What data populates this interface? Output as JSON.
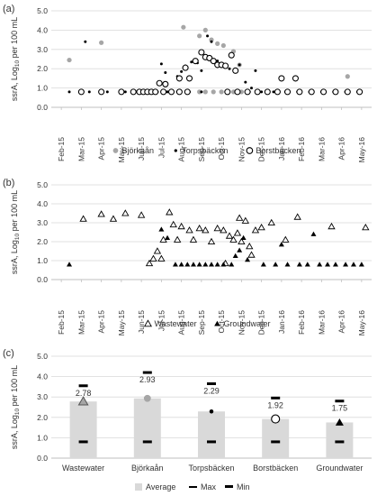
{
  "chart_data": [
    {
      "panel_label": "(a)",
      "type": "scatter",
      "ylabel_parts": [
        "ssrA, Log",
        "10",
        " per 100 mL"
      ],
      "ylim": [
        0,
        5
      ],
      "yticks": [
        "0.0",
        "1.0",
        "2.0",
        "3.0",
        "4.0",
        "5.0"
      ],
      "x_tick_labels": [
        "Feb-15",
        "Mar-15",
        "Apr-15",
        "May-15",
        "Jun-15",
        "Jul-15",
        "Aug-15",
        "Sep-15",
        "Oct-15",
        "Nov-15",
        "Dec-15",
        "Jan-16",
        "Feb-16",
        "Mar-16",
        "Apr-16",
        "May-16"
      ],
      "grid": true,
      "legend_position": "bottom",
      "series": [
        {
          "name": "Björkaån",
          "marker": "circle-gray",
          "points": [
            [
              0.4,
              2.45
            ],
            [
              2.0,
              3.35
            ],
            [
              6.1,
              4.15
            ],
            [
              6.9,
              3.7
            ],
            [
              7.2,
              4.0
            ],
            [
              7.5,
              3.5
            ],
            [
              7.8,
              3.3
            ],
            [
              8.1,
              3.2
            ],
            [
              8.6,
              2.9
            ],
            [
              8.9,
              2.2
            ],
            [
              2.0,
              0.8
            ],
            [
              6.9,
              0.8
            ],
            [
              7.2,
              0.8
            ],
            [
              7.6,
              0.8
            ],
            [
              8.0,
              0.8
            ],
            [
              8.3,
              0.8
            ],
            [
              8.6,
              0.8
            ],
            [
              9.0,
              0.8
            ],
            [
              14.3,
              1.6
            ]
          ]
        },
        {
          "name": "Torpsbäcken",
          "marker": "dot-black",
          "points": [
            [
              1.2,
              3.4
            ],
            [
              5.0,
              2.25
            ],
            [
              5.2,
              1.8
            ],
            [
              5.8,
              1.6
            ],
            [
              6.0,
              1.85
            ],
            [
              6.2,
              2.15
            ],
            [
              6.5,
              2.35
            ],
            [
              6.8,
              2.3
            ],
            [
              7.0,
              1.9
            ],
            [
              7.3,
              3.7
            ],
            [
              7.5,
              3.4
            ],
            [
              7.8,
              2.4
            ],
            [
              8.1,
              2.2
            ],
            [
              8.4,
              2.0
            ],
            [
              8.9,
              2.2
            ],
            [
              9.2,
              1.3
            ],
            [
              9.5,
              1.0
            ],
            [
              9.7,
              1.9
            ],
            [
              0.4,
              0.8
            ],
            [
              1.4,
              0.8
            ],
            [
              2.3,
              0.8
            ],
            [
              3.2,
              0.8
            ],
            [
              3.9,
              0.8
            ],
            [
              4.2,
              0.8
            ],
            [
              4.5,
              0.8
            ],
            [
              4.8,
              0.8
            ],
            [
              5.3,
              0.8
            ],
            [
              5.8,
              0.8
            ],
            [
              6.4,
              0.8
            ],
            [
              7.0,
              0.8
            ],
            [
              9.4,
              0.8
            ],
            [
              10.0,
              0.8
            ],
            [
              10.6,
              0.8
            ],
            [
              11.2,
              0.8
            ],
            [
              11.8,
              0.8
            ],
            [
              12.4,
              0.8
            ],
            [
              13.0,
              0.8
            ],
            [
              13.6,
              0.8
            ],
            [
              14.2,
              0.8
            ],
            [
              14.8,
              0.8
            ]
          ]
        },
        {
          "name": "Borstbäcken",
          "marker": "circle-open",
          "points": [
            [
              1.0,
              0.8
            ],
            [
              2.0,
              0.8
            ],
            [
              3.0,
              0.8
            ],
            [
              3.6,
              0.8
            ],
            [
              3.9,
              0.8
            ],
            [
              4.1,
              0.8
            ],
            [
              4.3,
              0.8
            ],
            [
              4.5,
              0.8
            ],
            [
              4.7,
              0.8
            ],
            [
              5.1,
              0.8
            ],
            [
              5.5,
              0.8
            ],
            [
              5.9,
              0.8
            ],
            [
              6.3,
              0.8
            ],
            [
              8.3,
              0.8
            ],
            [
              8.8,
              0.8
            ],
            [
              9.3,
              0.8
            ],
            [
              9.8,
              0.8
            ],
            [
              10.3,
              0.8
            ],
            [
              10.8,
              0.8
            ],
            [
              11.3,
              0.8
            ],
            [
              11.9,
              0.8
            ],
            [
              12.5,
              0.8
            ],
            [
              13.1,
              0.8
            ],
            [
              13.7,
              0.8
            ],
            [
              14.3,
              0.8
            ],
            [
              14.9,
              0.8
            ],
            [
              4.9,
              1.25
            ],
            [
              5.2,
              1.2
            ],
            [
              5.9,
              1.5
            ],
            [
              6.2,
              2.05
            ],
            [
              6.4,
              1.5
            ],
            [
              6.7,
              2.4
            ],
            [
              7.0,
              2.85
            ],
            [
              7.2,
              2.6
            ],
            [
              7.4,
              2.55
            ],
            [
              7.6,
              2.4
            ],
            [
              7.8,
              2.2
            ],
            [
              8.0,
              2.2
            ],
            [
              8.2,
              2.15
            ],
            [
              8.5,
              2.7
            ],
            [
              8.7,
              1.9
            ],
            [
              11.0,
              1.5
            ],
            [
              11.7,
              1.5
            ]
          ]
        }
      ]
    },
    {
      "panel_label": "(b)",
      "type": "scatter",
      "ylabel_parts": [
        "ssrA, Log",
        "10",
        " per 100 mL"
      ],
      "ylim": [
        0,
        5
      ],
      "yticks": [
        "0.0",
        "1.0",
        "2.0",
        "3.0",
        "4.0",
        "5.0"
      ],
      "x_tick_labels": [
        "Feb-15",
        "Mar-15",
        "Apr-15",
        "May-15",
        "Jun-15",
        "Jul-15",
        "Aug-15",
        "Sep-15",
        "Oct-15",
        "Nov-15",
        "Dec-15",
        "Jan-16",
        "Feb-16",
        "Mar-16",
        "Apr-16",
        "May-16"
      ],
      "grid": true,
      "legend_position": "bottom",
      "series": [
        {
          "name": "Wastewater",
          "marker": "triangle-open",
          "points": [
            [
              1.1,
              3.2
            ],
            [
              2.0,
              3.45
            ],
            [
              2.6,
              3.2
            ],
            [
              3.2,
              3.5
            ],
            [
              4.0,
              3.4
            ],
            [
              4.4,
              0.85
            ],
            [
              4.6,
              1.1
            ],
            [
              4.8,
              1.5
            ],
            [
              5.0,
              1.1
            ],
            [
              5.1,
              2.1
            ],
            [
              5.4,
              3.55
            ],
            [
              5.6,
              2.9
            ],
            [
              5.8,
              2.1
            ],
            [
              6.0,
              2.8
            ],
            [
              6.4,
              2.6
            ],
            [
              6.6,
              2.1
            ],
            [
              6.9,
              2.7
            ],
            [
              7.2,
              2.6
            ],
            [
              7.5,
              2.0
            ],
            [
              7.8,
              2.7
            ],
            [
              8.1,
              2.6
            ],
            [
              8.2,
              0.85
            ],
            [
              8.4,
              2.3
            ],
            [
              8.6,
              2.1
            ],
            [
              8.8,
              2.45
            ],
            [
              8.9,
              3.25
            ],
            [
              9.0,
              2.0
            ],
            [
              9.2,
              3.1
            ],
            [
              9.4,
              1.75
            ],
            [
              9.5,
              1.3
            ],
            [
              9.7,
              2.6
            ],
            [
              10.0,
              2.75
            ],
            [
              10.5,
              3.0
            ],
            [
              11.2,
              2.1
            ],
            [
              11.8,
              3.3
            ],
            [
              13.5,
              2.8
            ],
            [
              15.2,
              2.75
            ]
          ]
        },
        {
          "name": "Groundwater",
          "marker": "triangle-filled",
          "points": [
            [
              0.4,
              0.8
            ],
            [
              5.0,
              2.65
            ],
            [
              5.3,
              2.2
            ],
            [
              5.7,
              0.8
            ],
            [
              6.0,
              0.8
            ],
            [
              6.3,
              0.8
            ],
            [
              6.6,
              0.8
            ],
            [
              6.9,
              0.8
            ],
            [
              7.2,
              0.8
            ],
            [
              7.5,
              0.8
            ],
            [
              7.8,
              0.8
            ],
            [
              8.1,
              0.8
            ],
            [
              8.5,
              0.8
            ],
            [
              8.7,
              1.25
            ],
            [
              8.9,
              1.55
            ],
            [
              9.1,
              2.2
            ],
            [
              9.3,
              1.05
            ],
            [
              10.1,
              0.8
            ],
            [
              10.7,
              0.8
            ],
            [
              11.0,
              1.85
            ],
            [
              11.3,
              0.8
            ],
            [
              11.9,
              0.8
            ],
            [
              12.3,
              0.8
            ],
            [
              12.6,
              2.4
            ],
            [
              12.9,
              0.8
            ],
            [
              13.3,
              0.8
            ],
            [
              13.7,
              0.8
            ],
            [
              14.2,
              0.8
            ],
            [
              14.6,
              0.8
            ],
            [
              15.0,
              0.8
            ]
          ]
        }
      ]
    },
    {
      "panel_label": "(c)",
      "type": "bar",
      "ylabel_parts": [
        "ssrA, Log",
        "10",
        " per 100 mL"
      ],
      "ylim": [
        0,
        5
      ],
      "yticks": [
        "0.0",
        "1.0",
        "2.0",
        "3.0",
        "4.0",
        "5.0"
      ],
      "categories": [
        "Wastewater",
        "Björkaån",
        "Torpsbäcken",
        "Borstbäcken",
        "Groundwater"
      ],
      "average": [
        2.78,
        2.93,
        2.29,
        1.92,
        1.75
      ],
      "average_labels": [
        "2.78",
        "2.93",
        "2.29",
        "1.92",
        "1.75"
      ],
      "max": [
        3.55,
        4.2,
        3.65,
        2.95,
        2.8
      ],
      "min": [
        0.8,
        0.8,
        0.8,
        0.8,
        0.8
      ],
      "markers": [
        "triangle-gray",
        "circle-gray",
        "dot-black",
        "circle-open",
        "triangle-filled"
      ],
      "grid": true,
      "legend_position": "bottom",
      "legend": [
        "Average",
        "Max",
        "Min"
      ]
    }
  ],
  "colors": {
    "gray_marker": "#a6a6a6",
    "black": "#000000",
    "bar_fill": "#d9d9d9",
    "gridline": "#d9d9d9",
    "axis": "#bfbfbf",
    "text": "#333333"
  }
}
